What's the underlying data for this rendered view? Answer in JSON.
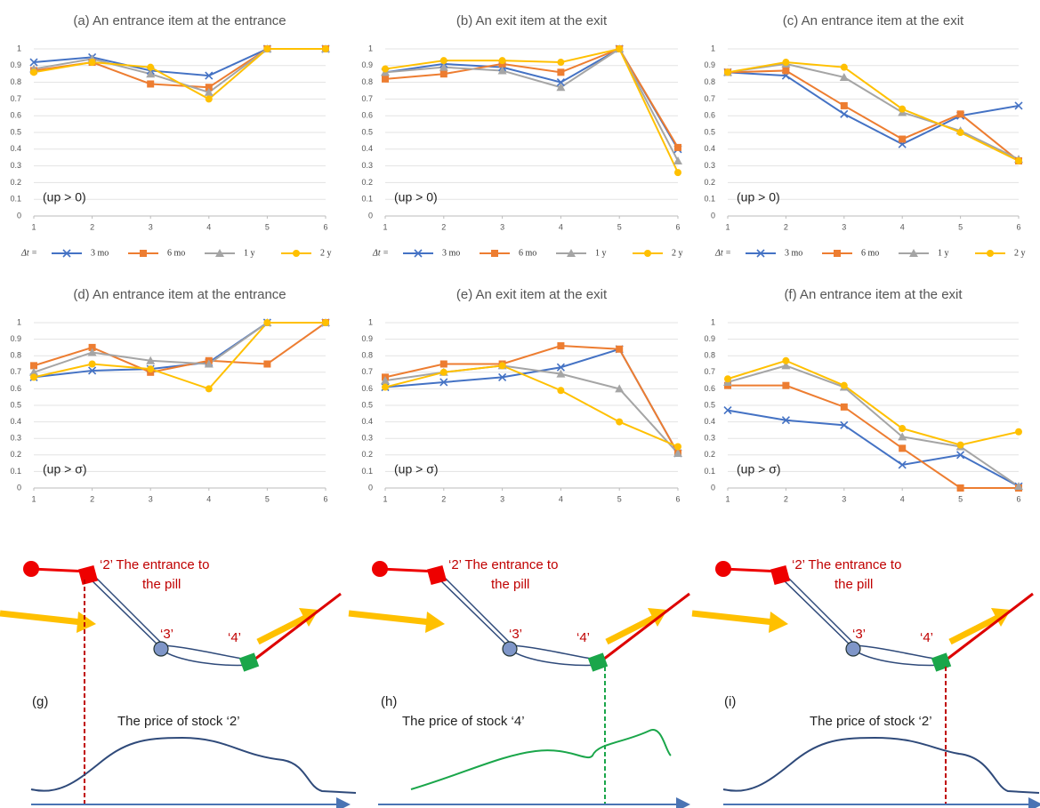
{
  "chart_data": [
    {
      "type": "line",
      "title": "(a) An entrance item at the entrance",
      "annotation": "(up > 0)",
      "legend_title": "Δt =",
      "legend": true,
      "x": [
        1,
        2,
        3,
        4,
        5,
        6
      ],
      "xlim": [
        1,
        6
      ],
      "xticks": [
        1,
        2,
        3,
        4,
        5,
        6
      ],
      "ylim": [
        0,
        1
      ],
      "yticks": [
        0,
        0.1,
        0.2,
        0.3,
        0.4,
        0.5,
        0.6,
        0.7,
        0.8,
        0.9,
        1
      ],
      "series": [
        {
          "name": "3 mo",
          "color": "#4472c4",
          "marker": "x",
          "values": [
            0.92,
            0.95,
            0.87,
            0.84,
            1,
            1
          ]
        },
        {
          "name": "6 mo",
          "color": "#ed7d31",
          "marker": "square",
          "values": [
            0.87,
            0.92,
            0.79,
            0.77,
            1,
            1
          ]
        },
        {
          "name": "1 y",
          "color": "#a5a5a5",
          "marker": "triangle",
          "values": [
            0.88,
            0.94,
            0.85,
            0.74,
            1,
            1
          ]
        },
        {
          "name": "2 y",
          "color": "#ffc000",
          "marker": "circle",
          "values": [
            0.86,
            0.92,
            0.89,
            0.7,
            1,
            1
          ]
        }
      ]
    },
    {
      "type": "line",
      "title": "(b) An exit item at the exit",
      "annotation": "(up > 0)",
      "legend_title": "Δt =",
      "legend": true,
      "x": [
        1,
        2,
        3,
        4,
        5,
        6
      ],
      "xlim": [
        1,
        6
      ],
      "xticks": [
        1,
        2,
        3,
        4,
        5,
        6
      ],
      "ylim": [
        0,
        1
      ],
      "yticks": [
        0,
        0.1,
        0.2,
        0.3,
        0.4,
        0.5,
        0.6,
        0.7,
        0.8,
        0.9,
        1
      ],
      "series": [
        {
          "name": "3 mo",
          "color": "#4472c4",
          "marker": "x",
          "values": [
            0.86,
            0.91,
            0.89,
            0.8,
            1,
            0.4
          ]
        },
        {
          "name": "6 mo",
          "color": "#ed7d31",
          "marker": "square",
          "values": [
            0.82,
            0.85,
            0.91,
            0.86,
            1,
            0.41
          ]
        },
        {
          "name": "1 y",
          "color": "#a5a5a5",
          "marker": "triangle",
          "values": [
            0.86,
            0.89,
            0.87,
            0.77,
            1,
            0.33
          ]
        },
        {
          "name": "2 y",
          "color": "#ffc000",
          "marker": "circle",
          "values": [
            0.88,
            0.93,
            0.93,
            0.92,
            1,
            0.26
          ]
        }
      ]
    },
    {
      "type": "line",
      "title": "(c) An entrance item at the exit",
      "annotation": "(up > 0)",
      "legend_title": "Δt =",
      "legend": true,
      "x": [
        1,
        2,
        3,
        4,
        5,
        6
      ],
      "xlim": [
        1,
        6
      ],
      "xticks": [
        1,
        2,
        3,
        4,
        5,
        6
      ],
      "ylim": [
        0,
        1
      ],
      "yticks": [
        0,
        0.1,
        0.2,
        0.3,
        0.4,
        0.5,
        0.6,
        0.7,
        0.8,
        0.9,
        1
      ],
      "series": [
        {
          "name": "3 mo",
          "color": "#4472c4",
          "marker": "x",
          "values": [
            0.86,
            0.84,
            0.61,
            0.43,
            0.6,
            0.66
          ]
        },
        {
          "name": "6 mo",
          "color": "#ed7d31",
          "marker": "square",
          "values": [
            0.86,
            0.87,
            0.66,
            0.46,
            0.61,
            0.33
          ]
        },
        {
          "name": "1 y",
          "color": "#a5a5a5",
          "marker": "triangle",
          "values": [
            0.86,
            0.91,
            0.83,
            0.62,
            0.51,
            0.34
          ]
        },
        {
          "name": "2 y",
          "color": "#ffc000",
          "marker": "circle",
          "values": [
            0.86,
            0.92,
            0.89,
            0.64,
            0.5,
            0.33
          ]
        }
      ]
    },
    {
      "type": "line",
      "title": "(d) An entrance item at the entrance",
      "annotation": "(up > σ)",
      "x": [
        1,
        2,
        3,
        4,
        5,
        6
      ],
      "xlim": [
        1,
        6
      ],
      "xticks": [
        1,
        2,
        3,
        4,
        5,
        6
      ],
      "ylim": [
        0,
        1
      ],
      "yticks": [
        0,
        0.1,
        0.2,
        0.3,
        0.4,
        0.5,
        0.6,
        0.7,
        0.8,
        0.9,
        1
      ],
      "series": [
        {
          "color": "#4472c4",
          "marker": "x",
          "values": [
            0.67,
            0.71,
            0.72,
            0.76,
            1,
            1
          ]
        },
        {
          "color": "#ed7d31",
          "marker": "square",
          "values": [
            0.74,
            0.85,
            0.7,
            0.77,
            0.75,
            1
          ]
        },
        {
          "color": "#a5a5a5",
          "marker": "triangle",
          "values": [
            0.7,
            0.82,
            0.77,
            0.75,
            1,
            1
          ]
        },
        {
          "color": "#ffc000",
          "marker": "circle",
          "values": [
            0.67,
            0.75,
            0.72,
            0.6,
            1,
            1
          ]
        }
      ]
    },
    {
      "type": "line",
      "title": "(e) An exit item at the exit",
      "annotation": "(up > σ)",
      "x": [
        1,
        2,
        3,
        4,
        5,
        6
      ],
      "xlim": [
        1,
        6
      ],
      "xticks": [
        1,
        2,
        3,
        4,
        5,
        6
      ],
      "ylim": [
        0,
        1
      ],
      "yticks": [
        0,
        0.1,
        0.2,
        0.3,
        0.4,
        0.5,
        0.6,
        0.7,
        0.8,
        0.9,
        1
      ],
      "series": [
        {
          "color": "#4472c4",
          "marker": "x",
          "values": [
            0.61,
            0.64,
            0.67,
            0.73,
            0.84,
            0.21
          ]
        },
        {
          "color": "#ed7d31",
          "marker": "square",
          "values": [
            0.67,
            0.75,
            0.75,
            0.86,
            0.84,
            0.21
          ]
        },
        {
          "color": "#a5a5a5",
          "marker": "triangle",
          "values": [
            0.65,
            0.7,
            0.74,
            0.69,
            0.6,
            0.21
          ]
        },
        {
          "color": "#ffc000",
          "marker": "circle",
          "values": [
            0.61,
            0.7,
            0.74,
            0.59,
            0.4,
            0.25
          ]
        }
      ]
    },
    {
      "type": "line",
      "title": "(f) An entrance item at the exit",
      "annotation": "(up > σ)",
      "x": [
        1,
        2,
        3,
        4,
        5,
        6
      ],
      "xlim": [
        1,
        6
      ],
      "xticks": [
        1,
        2,
        3,
        4,
        5,
        6
      ],
      "ylim": [
        0,
        1
      ],
      "yticks": [
        0,
        0.1,
        0.2,
        0.3,
        0.4,
        0.5,
        0.6,
        0.7,
        0.8,
        0.9,
        1
      ],
      "series": [
        {
          "color": "#4472c4",
          "marker": "x",
          "values": [
            0.47,
            0.41,
            0.38,
            0.14,
            0.2,
            0.01
          ]
        },
        {
          "color": "#ed7d31",
          "marker": "square",
          "values": [
            0.62,
            0.62,
            0.49,
            0.24,
            0,
            0
          ]
        },
        {
          "color": "#a5a5a5",
          "marker": "triangle",
          "values": [
            0.64,
            0.74,
            0.61,
            0.31,
            0.25,
            0.01
          ]
        },
        {
          "color": "#ffc000",
          "marker": "circle",
          "values": [
            0.66,
            0.77,
            0.62,
            0.36,
            0.26,
            0.34
          ]
        }
      ]
    }
  ],
  "diagrams": [
    {
      "label": "(g)",
      "caption": "The price of stock ‘2’",
      "entrance": [
        "‘2’ The entrance to",
        "the pill"
      ],
      "node3": "‘3’",
      "node4": "‘4’"
    },
    {
      "label": "(h)",
      "caption": "The price of stock ‘4’",
      "entrance": [
        "‘2’ The entrance to",
        "the pill"
      ],
      "node3": "‘3’",
      "node4": "‘4’"
    },
    {
      "label": "(i)",
      "caption": "The price of stock ‘2’",
      "entrance": [
        "‘2’ The entrance to",
        "the pill"
      ],
      "node3": "‘3’",
      "node4": "‘4’"
    }
  ]
}
